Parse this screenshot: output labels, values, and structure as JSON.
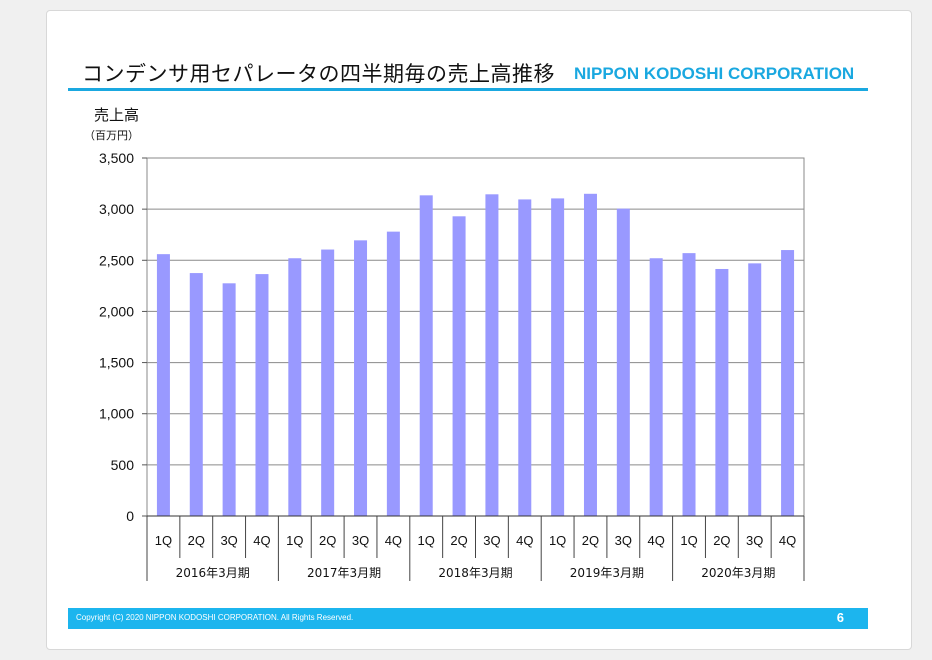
{
  "page": {
    "title": "コンデンサ用セパレータの四半期毎の売上高推移",
    "company": "NIPPON KODOSHI CORPORATION",
    "footer_text": "Copyright (C) 2020 NIPPON KODOSHI CORPORATION. All Rights Reserved.",
    "page_number": "6"
  },
  "colors": {
    "accent": "#1aa8e0",
    "bar": "#9999ff",
    "footer": "#1cb5ee"
  },
  "chart_data": {
    "type": "bar",
    "title": "コンデンサ用セパレータの四半期毎の売上高推移",
    "ylabel": "売上高",
    "yunit": "（百万円）",
    "xlabel": "",
    "ylim": [
      0,
      3500
    ],
    "yticks": [
      "0",
      "500",
      "1,000",
      "1,500",
      "2,000",
      "2,500",
      "3,000",
      "3,500"
    ],
    "grid": true,
    "legend": "none",
    "periods": [
      "2016年3月期",
      "2017年3月期",
      "2018年3月期",
      "2019年3月期",
      "2020年3月期"
    ],
    "categories": [
      "1Q",
      "2Q",
      "3Q",
      "4Q",
      "1Q",
      "2Q",
      "3Q",
      "4Q",
      "1Q",
      "2Q",
      "3Q",
      "4Q",
      "1Q",
      "2Q",
      "3Q",
      "4Q",
      "1Q",
      "2Q",
      "3Q",
      "4Q"
    ],
    "values": [
      2560,
      2375,
      2275,
      2365,
      2520,
      2605,
      2695,
      2780,
      3135,
      2930,
      3145,
      3095,
      3105,
      3150,
      3005,
      2520,
      2570,
      2415,
      2470,
      2600
    ]
  }
}
